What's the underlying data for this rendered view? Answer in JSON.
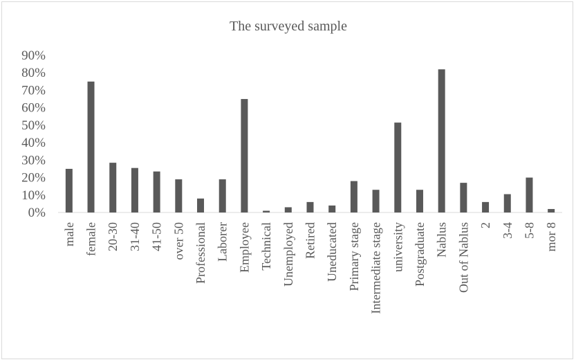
{
  "chart_data": {
    "type": "bar",
    "title": "The surveyed sample",
    "xlabel": "",
    "ylabel": "",
    "ylim": [
      0,
      0.9
    ],
    "yticks": [
      "0%",
      "10%",
      "20%",
      "30%",
      "40%",
      "50%",
      "60%",
      "70%",
      "80%",
      "90%"
    ],
    "grid": false,
    "legend": "none",
    "bar_color": "#595959",
    "categories": [
      "male",
      "female",
      "20-30",
      "31-40",
      "41-50",
      "over 50",
      "Professional",
      "Laborer",
      "Employee",
      "Technical",
      "Unemployed",
      "Retired",
      "Uneducated",
      "Primary stage",
      "Intermediate stage",
      "university",
      "Postgraduate",
      "Nablus",
      "Out of Nablus",
      "2",
      "3-4",
      "5-8",
      "mor 8"
    ],
    "values": [
      0.25,
      0.75,
      0.285,
      0.255,
      0.235,
      0.19,
      0.08,
      0.19,
      0.65,
      0.01,
      0.03,
      0.06,
      0.04,
      0.18,
      0.13,
      0.515,
      0.13,
      0.82,
      0.17,
      0.06,
      0.105,
      0.2,
      0.02
    ]
  }
}
